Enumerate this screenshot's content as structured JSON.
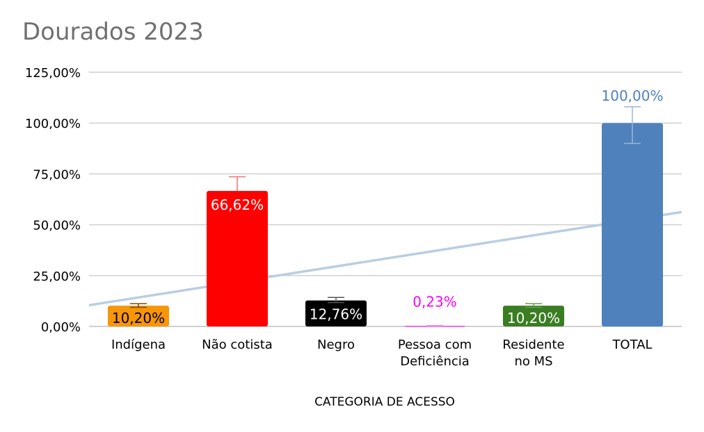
{
  "chart_data": {
    "type": "bar",
    "title": "Dourados 2023",
    "xlabel": "CATEGORIA DE ACESSO",
    "ylabel": "",
    "ylim": [
      0,
      125
    ],
    "yticks": [
      "0,00%",
      "25,00%",
      "50,00%",
      "75,00%",
      "100,00%",
      "125,00%"
    ],
    "ytick_values": [
      0,
      25,
      50,
      75,
      100,
      125
    ],
    "categories": [
      [
        "Indígena"
      ],
      [
        "Não cotista"
      ],
      [
        "Negro"
      ],
      [
        "Pessoa com",
        "Deficiência"
      ],
      [
        "Residente",
        "no MS"
      ],
      [
        "TOTAL"
      ]
    ],
    "values": [
      10.2,
      66.62,
      12.76,
      0.23,
      10.2,
      100.0
    ],
    "value_labels": [
      "10,20%",
      "66,62%",
      "12,76%",
      "0,23%",
      "10,20%",
      "100,00%"
    ],
    "error_plus": [
      1.0,
      7.0,
      1.5,
      0.1,
      1.0,
      8.0
    ],
    "error_minus": [
      0.8,
      0,
      1.0,
      0.1,
      0.8,
      10.0
    ],
    "bar_colors": [
      "#F7960B",
      "#FF0000",
      "#000000",
      "#FF00FF",
      "#3A7D22",
      "#4F81BD"
    ],
    "label_colors": [
      "#000000",
      "#FFFFFF",
      "#FFFFFF",
      "#FF00FF",
      "#FFFFFF",
      "#4F81BD"
    ],
    "label_inside": [
      true,
      true,
      true,
      false,
      true,
      false
    ],
    "error_colors": [
      "#7A4A05",
      "#F07070",
      "#555555",
      "#FF66FF",
      "#6A9A50",
      "#9BB6D6"
    ],
    "trendline": {
      "type": "linear",
      "color": "#B9CDE3"
    },
    "grid": true,
    "legend": "none"
  }
}
